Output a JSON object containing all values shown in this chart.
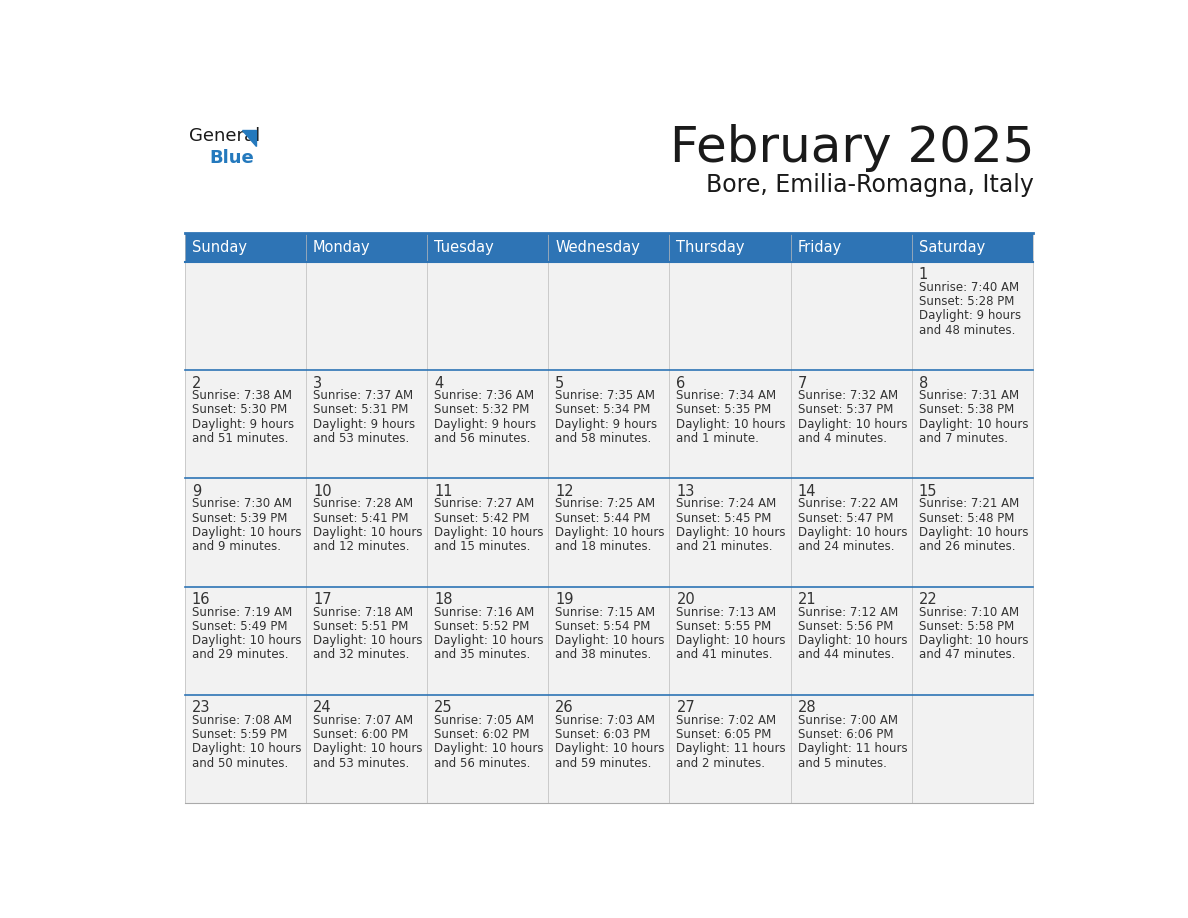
{
  "title": "February 2025",
  "subtitle": "Bore, Emilia-Romagna, Italy",
  "header_bg": "#2E74B5",
  "header_text_color": "#FFFFFF",
  "cell_bg": "#F2F2F2",
  "cell_bg_white": "#FFFFFF",
  "border_color": "#2E74B5",
  "row_divider_color": "#2E74B5",
  "day_number_color": "#333333",
  "cell_text_color": "#333333",
  "title_color": "#1a1a1a",
  "subtitle_color": "#1a1a1a",
  "logo_general_color": "#1a1a1a",
  "logo_blue_color": "#2479BD",
  "days_of_week": [
    "Sunday",
    "Monday",
    "Tuesday",
    "Wednesday",
    "Thursday",
    "Friday",
    "Saturday"
  ],
  "calendar_data": {
    "1": {
      "sunrise": "7:40 AM",
      "sunset": "5:28 PM",
      "daylight_l1": "Daylight: 9 hours",
      "daylight_l2": "and 48 minutes."
    },
    "2": {
      "sunrise": "7:38 AM",
      "sunset": "5:30 PM",
      "daylight_l1": "Daylight: 9 hours",
      "daylight_l2": "and 51 minutes."
    },
    "3": {
      "sunrise": "7:37 AM",
      "sunset": "5:31 PM",
      "daylight_l1": "Daylight: 9 hours",
      "daylight_l2": "and 53 minutes."
    },
    "4": {
      "sunrise": "7:36 AM",
      "sunset": "5:32 PM",
      "daylight_l1": "Daylight: 9 hours",
      "daylight_l2": "and 56 minutes."
    },
    "5": {
      "sunrise": "7:35 AM",
      "sunset": "5:34 PM",
      "daylight_l1": "Daylight: 9 hours",
      "daylight_l2": "and 58 minutes."
    },
    "6": {
      "sunrise": "7:34 AM",
      "sunset": "5:35 PM",
      "daylight_l1": "Daylight: 10 hours",
      "daylight_l2": "and 1 minute."
    },
    "7": {
      "sunrise": "7:32 AM",
      "sunset": "5:37 PM",
      "daylight_l1": "Daylight: 10 hours",
      "daylight_l2": "and 4 minutes."
    },
    "8": {
      "sunrise": "7:31 AM",
      "sunset": "5:38 PM",
      "daylight_l1": "Daylight: 10 hours",
      "daylight_l2": "and 7 minutes."
    },
    "9": {
      "sunrise": "7:30 AM",
      "sunset": "5:39 PM",
      "daylight_l1": "Daylight: 10 hours",
      "daylight_l2": "and 9 minutes."
    },
    "10": {
      "sunrise": "7:28 AM",
      "sunset": "5:41 PM",
      "daylight_l1": "Daylight: 10 hours",
      "daylight_l2": "and 12 minutes."
    },
    "11": {
      "sunrise": "7:27 AM",
      "sunset": "5:42 PM",
      "daylight_l1": "Daylight: 10 hours",
      "daylight_l2": "and 15 minutes."
    },
    "12": {
      "sunrise": "7:25 AM",
      "sunset": "5:44 PM",
      "daylight_l1": "Daylight: 10 hours",
      "daylight_l2": "and 18 minutes."
    },
    "13": {
      "sunrise": "7:24 AM",
      "sunset": "5:45 PM",
      "daylight_l1": "Daylight: 10 hours",
      "daylight_l2": "and 21 minutes."
    },
    "14": {
      "sunrise": "7:22 AM",
      "sunset": "5:47 PM",
      "daylight_l1": "Daylight: 10 hours",
      "daylight_l2": "and 24 minutes."
    },
    "15": {
      "sunrise": "7:21 AM",
      "sunset": "5:48 PM",
      "daylight_l1": "Daylight: 10 hours",
      "daylight_l2": "and 26 minutes."
    },
    "16": {
      "sunrise": "7:19 AM",
      "sunset": "5:49 PM",
      "daylight_l1": "Daylight: 10 hours",
      "daylight_l2": "and 29 minutes."
    },
    "17": {
      "sunrise": "7:18 AM",
      "sunset": "5:51 PM",
      "daylight_l1": "Daylight: 10 hours",
      "daylight_l2": "and 32 minutes."
    },
    "18": {
      "sunrise": "7:16 AM",
      "sunset": "5:52 PM",
      "daylight_l1": "Daylight: 10 hours",
      "daylight_l2": "and 35 minutes."
    },
    "19": {
      "sunrise": "7:15 AM",
      "sunset": "5:54 PM",
      "daylight_l1": "Daylight: 10 hours",
      "daylight_l2": "and 38 minutes."
    },
    "20": {
      "sunrise": "7:13 AM",
      "sunset": "5:55 PM",
      "daylight_l1": "Daylight: 10 hours",
      "daylight_l2": "and 41 minutes."
    },
    "21": {
      "sunrise": "7:12 AM",
      "sunset": "5:56 PM",
      "daylight_l1": "Daylight: 10 hours",
      "daylight_l2": "and 44 minutes."
    },
    "22": {
      "sunrise": "7:10 AM",
      "sunset": "5:58 PM",
      "daylight_l1": "Daylight: 10 hours",
      "daylight_l2": "and 47 minutes."
    },
    "23": {
      "sunrise": "7:08 AM",
      "sunset": "5:59 PM",
      "daylight_l1": "Daylight: 10 hours",
      "daylight_l2": "and 50 minutes."
    },
    "24": {
      "sunrise": "7:07 AM",
      "sunset": "6:00 PM",
      "daylight_l1": "Daylight: 10 hours",
      "daylight_l2": "and 53 minutes."
    },
    "25": {
      "sunrise": "7:05 AM",
      "sunset": "6:02 PM",
      "daylight_l1": "Daylight: 10 hours",
      "daylight_l2": "and 56 minutes."
    },
    "26": {
      "sunrise": "7:03 AM",
      "sunset": "6:03 PM",
      "daylight_l1": "Daylight: 10 hours",
      "daylight_l2": "and 59 minutes."
    },
    "27": {
      "sunrise": "7:02 AM",
      "sunset": "6:05 PM",
      "daylight_l1": "Daylight: 11 hours",
      "daylight_l2": "and 2 minutes."
    },
    "28": {
      "sunrise": "7:00 AM",
      "sunset": "6:06 PM",
      "daylight_l1": "Daylight: 11 hours",
      "daylight_l2": "and 5 minutes."
    }
  },
  "first_col": 6,
  "total_days": 28
}
